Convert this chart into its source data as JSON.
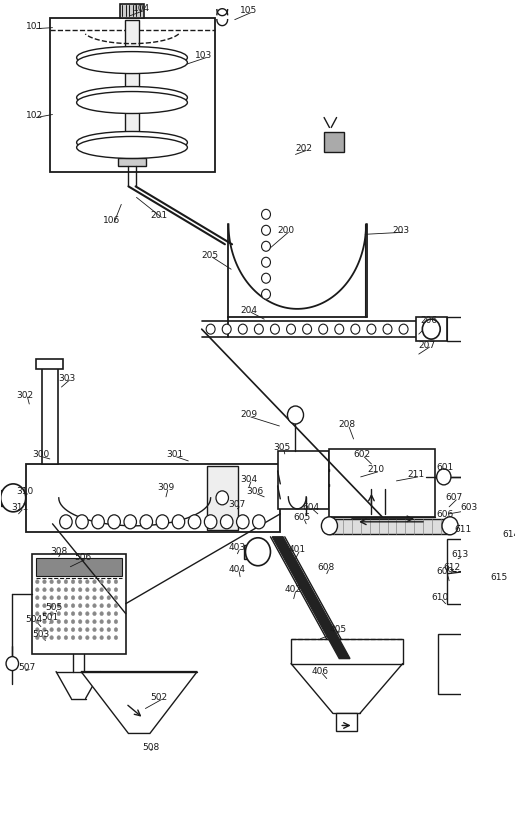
{
  "bg_color": "#ffffff",
  "line_color": "#1a1a1a",
  "line_width": 1.0,
  "label_fontsize": 6.0,
  "fig_width": 5.15,
  "fig_height": 8.29
}
